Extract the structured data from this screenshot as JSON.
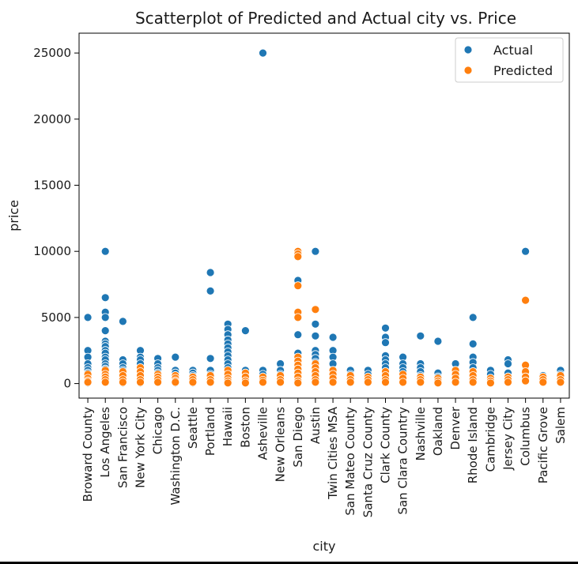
{
  "chart_data": {
    "type": "scatter",
    "title": "Scatterplot of Predicted and Actual city vs. Price",
    "xlabel": "city",
    "ylabel": "price",
    "ylim": [
      -1100,
      26500
    ],
    "yticks": [
      0,
      5000,
      10000,
      15000,
      20000,
      25000
    ],
    "grid": false,
    "legend_position": "top-right",
    "categories": [
      "Broward County",
      "Los Angeles",
      "San Francisco",
      "New York City",
      "Chicago",
      "Washington D.C.",
      "Seattle",
      "Portland",
      "Hawaii",
      "Boston",
      "Asheville",
      "New Orleans",
      "San Diego",
      "Austin",
      "Twin Cities MSA",
      "San Mateo County",
      "Santa Cruz County",
      "Clark County",
      "San Clara Country",
      "Nashville",
      "Oakland",
      "Denver",
      "Rhode Island",
      "Cambridge",
      "Jersey City",
      "Columbus",
      "Pacific Grove",
      "Salem"
    ],
    "series": [
      {
        "name": "Actual",
        "color": "#1f77b4",
        "points": [
          [
            0,
            5000
          ],
          [
            0,
            2500
          ],
          [
            0,
            2000
          ],
          [
            0,
            1500
          ],
          [
            0,
            1200
          ],
          [
            0,
            1000
          ],
          [
            0,
            800
          ],
          [
            0,
            600
          ],
          [
            0,
            400
          ],
          [
            0,
            200
          ],
          [
            0,
            50
          ],
          [
            1,
            10000
          ],
          [
            1,
            6500
          ],
          [
            1,
            5400
          ],
          [
            1,
            5000
          ],
          [
            1,
            4000
          ],
          [
            1,
            3200
          ],
          [
            1,
            3000
          ],
          [
            1,
            2800
          ],
          [
            1,
            2500
          ],
          [
            1,
            2300
          ],
          [
            1,
            2000
          ],
          [
            1,
            1800
          ],
          [
            1,
            1500
          ],
          [
            1,
            1300
          ],
          [
            1,
            1100
          ],
          [
            1,
            900
          ],
          [
            1,
            700
          ],
          [
            1,
            500
          ],
          [
            1,
            300
          ],
          [
            1,
            100
          ],
          [
            2,
            4700
          ],
          [
            2,
            1800
          ],
          [
            2,
            1500
          ],
          [
            2,
            1200
          ],
          [
            2,
            1000
          ],
          [
            2,
            800
          ],
          [
            2,
            600
          ],
          [
            2,
            400
          ],
          [
            2,
            200
          ],
          [
            2,
            50
          ],
          [
            3,
            2500
          ],
          [
            3,
            2000
          ],
          [
            3,
            1800
          ],
          [
            3,
            1500
          ],
          [
            3,
            1200
          ],
          [
            3,
            1000
          ],
          [
            3,
            800
          ],
          [
            3,
            600
          ],
          [
            3,
            400
          ],
          [
            3,
            200
          ],
          [
            3,
            50
          ],
          [
            4,
            1900
          ],
          [
            4,
            1500
          ],
          [
            4,
            1200
          ],
          [
            4,
            1000
          ],
          [
            4,
            800
          ],
          [
            4,
            500
          ],
          [
            4,
            300
          ],
          [
            4,
            100
          ],
          [
            5,
            2000
          ],
          [
            5,
            1000
          ],
          [
            5,
            800
          ],
          [
            5,
            600
          ],
          [
            5,
            400
          ],
          [
            5,
            200
          ],
          [
            5,
            50
          ],
          [
            6,
            1000
          ],
          [
            6,
            800
          ],
          [
            6,
            600
          ],
          [
            6,
            400
          ],
          [
            6,
            200
          ],
          [
            6,
            50
          ],
          [
            7,
            8400
          ],
          [
            7,
            7000
          ],
          [
            7,
            1900
          ],
          [
            7,
            1000
          ],
          [
            7,
            700
          ],
          [
            7,
            400
          ],
          [
            7,
            100
          ],
          [
            8,
            4500
          ],
          [
            8,
            4100
          ],
          [
            8,
            3700
          ],
          [
            8,
            3300
          ],
          [
            8,
            3000
          ],
          [
            8,
            2700
          ],
          [
            8,
            2400
          ],
          [
            8,
            2100
          ],
          [
            8,
            1800
          ],
          [
            8,
            1500
          ],
          [
            8,
            1200
          ],
          [
            8,
            900
          ],
          [
            8,
            600
          ],
          [
            8,
            300
          ],
          [
            8,
            100
          ],
          [
            9,
            4000
          ],
          [
            9,
            1000
          ],
          [
            9,
            700
          ],
          [
            9,
            400
          ],
          [
            9,
            100
          ],
          [
            10,
            25000
          ],
          [
            10,
            1000
          ],
          [
            10,
            700
          ],
          [
            10,
            400
          ],
          [
            10,
            100
          ],
          [
            11,
            1500
          ],
          [
            11,
            1000
          ],
          [
            11,
            700
          ],
          [
            11,
            400
          ],
          [
            11,
            100
          ],
          [
            12,
            7800
          ],
          [
            12,
            5000
          ],
          [
            12,
            3700
          ],
          [
            12,
            2300
          ],
          [
            12,
            2000
          ],
          [
            12,
            1600
          ],
          [
            12,
            1300
          ],
          [
            12,
            1000
          ],
          [
            12,
            700
          ],
          [
            12,
            400
          ],
          [
            12,
            100
          ],
          [
            13,
            10000
          ],
          [
            13,
            4500
          ],
          [
            13,
            3600
          ],
          [
            13,
            2500
          ],
          [
            13,
            2200
          ],
          [
            13,
            1900
          ],
          [
            13,
            1600
          ],
          [
            13,
            1300
          ],
          [
            13,
            1000
          ],
          [
            13,
            700
          ],
          [
            13,
            400
          ],
          [
            13,
            100
          ],
          [
            14,
            3500
          ],
          [
            14,
            2500
          ],
          [
            14,
            2000
          ],
          [
            14,
            1500
          ],
          [
            14,
            1000
          ],
          [
            14,
            700
          ],
          [
            14,
            400
          ],
          [
            14,
            100
          ],
          [
            15,
            1000
          ],
          [
            15,
            700
          ],
          [
            15,
            400
          ],
          [
            15,
            100
          ],
          [
            16,
            1000
          ],
          [
            16,
            700
          ],
          [
            16,
            400
          ],
          [
            16,
            100
          ],
          [
            17,
            4200
          ],
          [
            17,
            3500
          ],
          [
            17,
            3100
          ],
          [
            17,
            2100
          ],
          [
            17,
            1800
          ],
          [
            17,
            1500
          ],
          [
            17,
            1200
          ],
          [
            17,
            900
          ],
          [
            17,
            600
          ],
          [
            17,
            300
          ],
          [
            17,
            100
          ],
          [
            18,
            2000
          ],
          [
            18,
            1500
          ],
          [
            18,
            1200
          ],
          [
            18,
            900
          ],
          [
            18,
            600
          ],
          [
            18,
            300
          ],
          [
            18,
            100
          ],
          [
            19,
            3600
          ],
          [
            19,
            1500
          ],
          [
            19,
            1200
          ],
          [
            19,
            900
          ],
          [
            19,
            600
          ],
          [
            19,
            300
          ],
          [
            19,
            100
          ],
          [
            20,
            3200
          ],
          [
            20,
            800
          ],
          [
            20,
            500
          ],
          [
            20,
            200
          ],
          [
            21,
            1500
          ],
          [
            21,
            1000
          ],
          [
            21,
            700
          ],
          [
            21,
            400
          ],
          [
            21,
            100
          ],
          [
            22,
            5000
          ],
          [
            22,
            3000
          ],
          [
            22,
            2000
          ],
          [
            22,
            1600
          ],
          [
            22,
            1200
          ],
          [
            22,
            900
          ],
          [
            22,
            600
          ],
          [
            22,
            300
          ],
          [
            22,
            100
          ],
          [
            23,
            1000
          ],
          [
            23,
            700
          ],
          [
            23,
            400
          ],
          [
            23,
            100
          ],
          [
            24,
            1800
          ],
          [
            24,
            1500
          ],
          [
            24,
            800
          ],
          [
            24,
            500
          ],
          [
            24,
            200
          ],
          [
            25,
            10000
          ],
          [
            25,
            1300
          ],
          [
            25,
            900
          ],
          [
            25,
            500
          ],
          [
            25,
            200
          ],
          [
            26,
            600
          ],
          [
            26,
            400
          ],
          [
            26,
            200
          ],
          [
            27,
            1000
          ],
          [
            27,
            700
          ],
          [
            27,
            400
          ],
          [
            27,
            100
          ]
        ]
      },
      {
        "name": "Predicted",
        "color": "#ff7f0e",
        "points": [
          [
            0,
            700
          ],
          [
            0,
            400
          ],
          [
            0,
            200
          ],
          [
            0,
            100
          ],
          [
            1,
            1000
          ],
          [
            1,
            700
          ],
          [
            1,
            500
          ],
          [
            1,
            300
          ],
          [
            1,
            100
          ],
          [
            2,
            900
          ],
          [
            2,
            600
          ],
          [
            2,
            300
          ],
          [
            2,
            100
          ],
          [
            3,
            1200
          ],
          [
            3,
            900
          ],
          [
            3,
            600
          ],
          [
            3,
            300
          ],
          [
            3,
            100
          ],
          [
            4,
            700
          ],
          [
            4,
            500
          ],
          [
            4,
            300
          ],
          [
            4,
            100
          ],
          [
            5,
            600
          ],
          [
            5,
            400
          ],
          [
            5,
            200
          ],
          [
            5,
            100
          ],
          [
            6,
            500
          ],
          [
            6,
            300
          ],
          [
            6,
            100
          ],
          [
            7,
            600
          ],
          [
            7,
            300
          ],
          [
            7,
            100
          ],
          [
            8,
            1000
          ],
          [
            8,
            700
          ],
          [
            8,
            400
          ],
          [
            8,
            200
          ],
          [
            8,
            50
          ],
          [
            9,
            800
          ],
          [
            9,
            500
          ],
          [
            9,
            200
          ],
          [
            9,
            50
          ],
          [
            10,
            500
          ],
          [
            10,
            250
          ],
          [
            10,
            100
          ],
          [
            11,
            600
          ],
          [
            11,
            300
          ],
          [
            11,
            100
          ],
          [
            12,
            10000
          ],
          [
            12,
            9800
          ],
          [
            12,
            9600
          ],
          [
            12,
            7400
          ],
          [
            12,
            5400
          ],
          [
            12,
            5000
          ],
          [
            12,
            2000
          ],
          [
            12,
            1700
          ],
          [
            12,
            1400
          ],
          [
            12,
            1100
          ],
          [
            12,
            800
          ],
          [
            12,
            500
          ],
          [
            12,
            200
          ],
          [
            12,
            50
          ],
          [
            13,
            5600
          ],
          [
            13,
            1500
          ],
          [
            13,
            1200
          ],
          [
            13,
            900
          ],
          [
            13,
            600
          ],
          [
            13,
            300
          ],
          [
            13,
            100
          ],
          [
            14,
            1000
          ],
          [
            14,
            700
          ],
          [
            14,
            400
          ],
          [
            14,
            100
          ],
          [
            15,
            600
          ],
          [
            15,
            300
          ],
          [
            15,
            100
          ],
          [
            16,
            500
          ],
          [
            16,
            300
          ],
          [
            16,
            100
          ],
          [
            17,
            900
          ],
          [
            17,
            600
          ],
          [
            17,
            300
          ],
          [
            17,
            100
          ],
          [
            18,
            700
          ],
          [
            18,
            400
          ],
          [
            18,
            100
          ],
          [
            19,
            500
          ],
          [
            19,
            300
          ],
          [
            19,
            100
          ],
          [
            20,
            400
          ],
          [
            20,
            200
          ],
          [
            20,
            50
          ],
          [
            21,
            1000
          ],
          [
            21,
            700
          ],
          [
            21,
            400
          ],
          [
            21,
            100
          ],
          [
            22,
            900
          ],
          [
            22,
            600
          ],
          [
            22,
            300
          ],
          [
            22,
            100
          ],
          [
            23,
            400
          ],
          [
            23,
            200
          ],
          [
            23,
            50
          ],
          [
            24,
            500
          ],
          [
            24,
            300
          ],
          [
            24,
            100
          ],
          [
            25,
            6300
          ],
          [
            25,
            1400
          ],
          [
            25,
            900
          ],
          [
            25,
            500
          ],
          [
            25,
            200
          ],
          [
            26,
            500
          ],
          [
            26,
            300
          ],
          [
            26,
            100
          ],
          [
            27,
            600
          ],
          [
            27,
            300
          ],
          [
            27,
            100
          ]
        ]
      }
    ]
  }
}
